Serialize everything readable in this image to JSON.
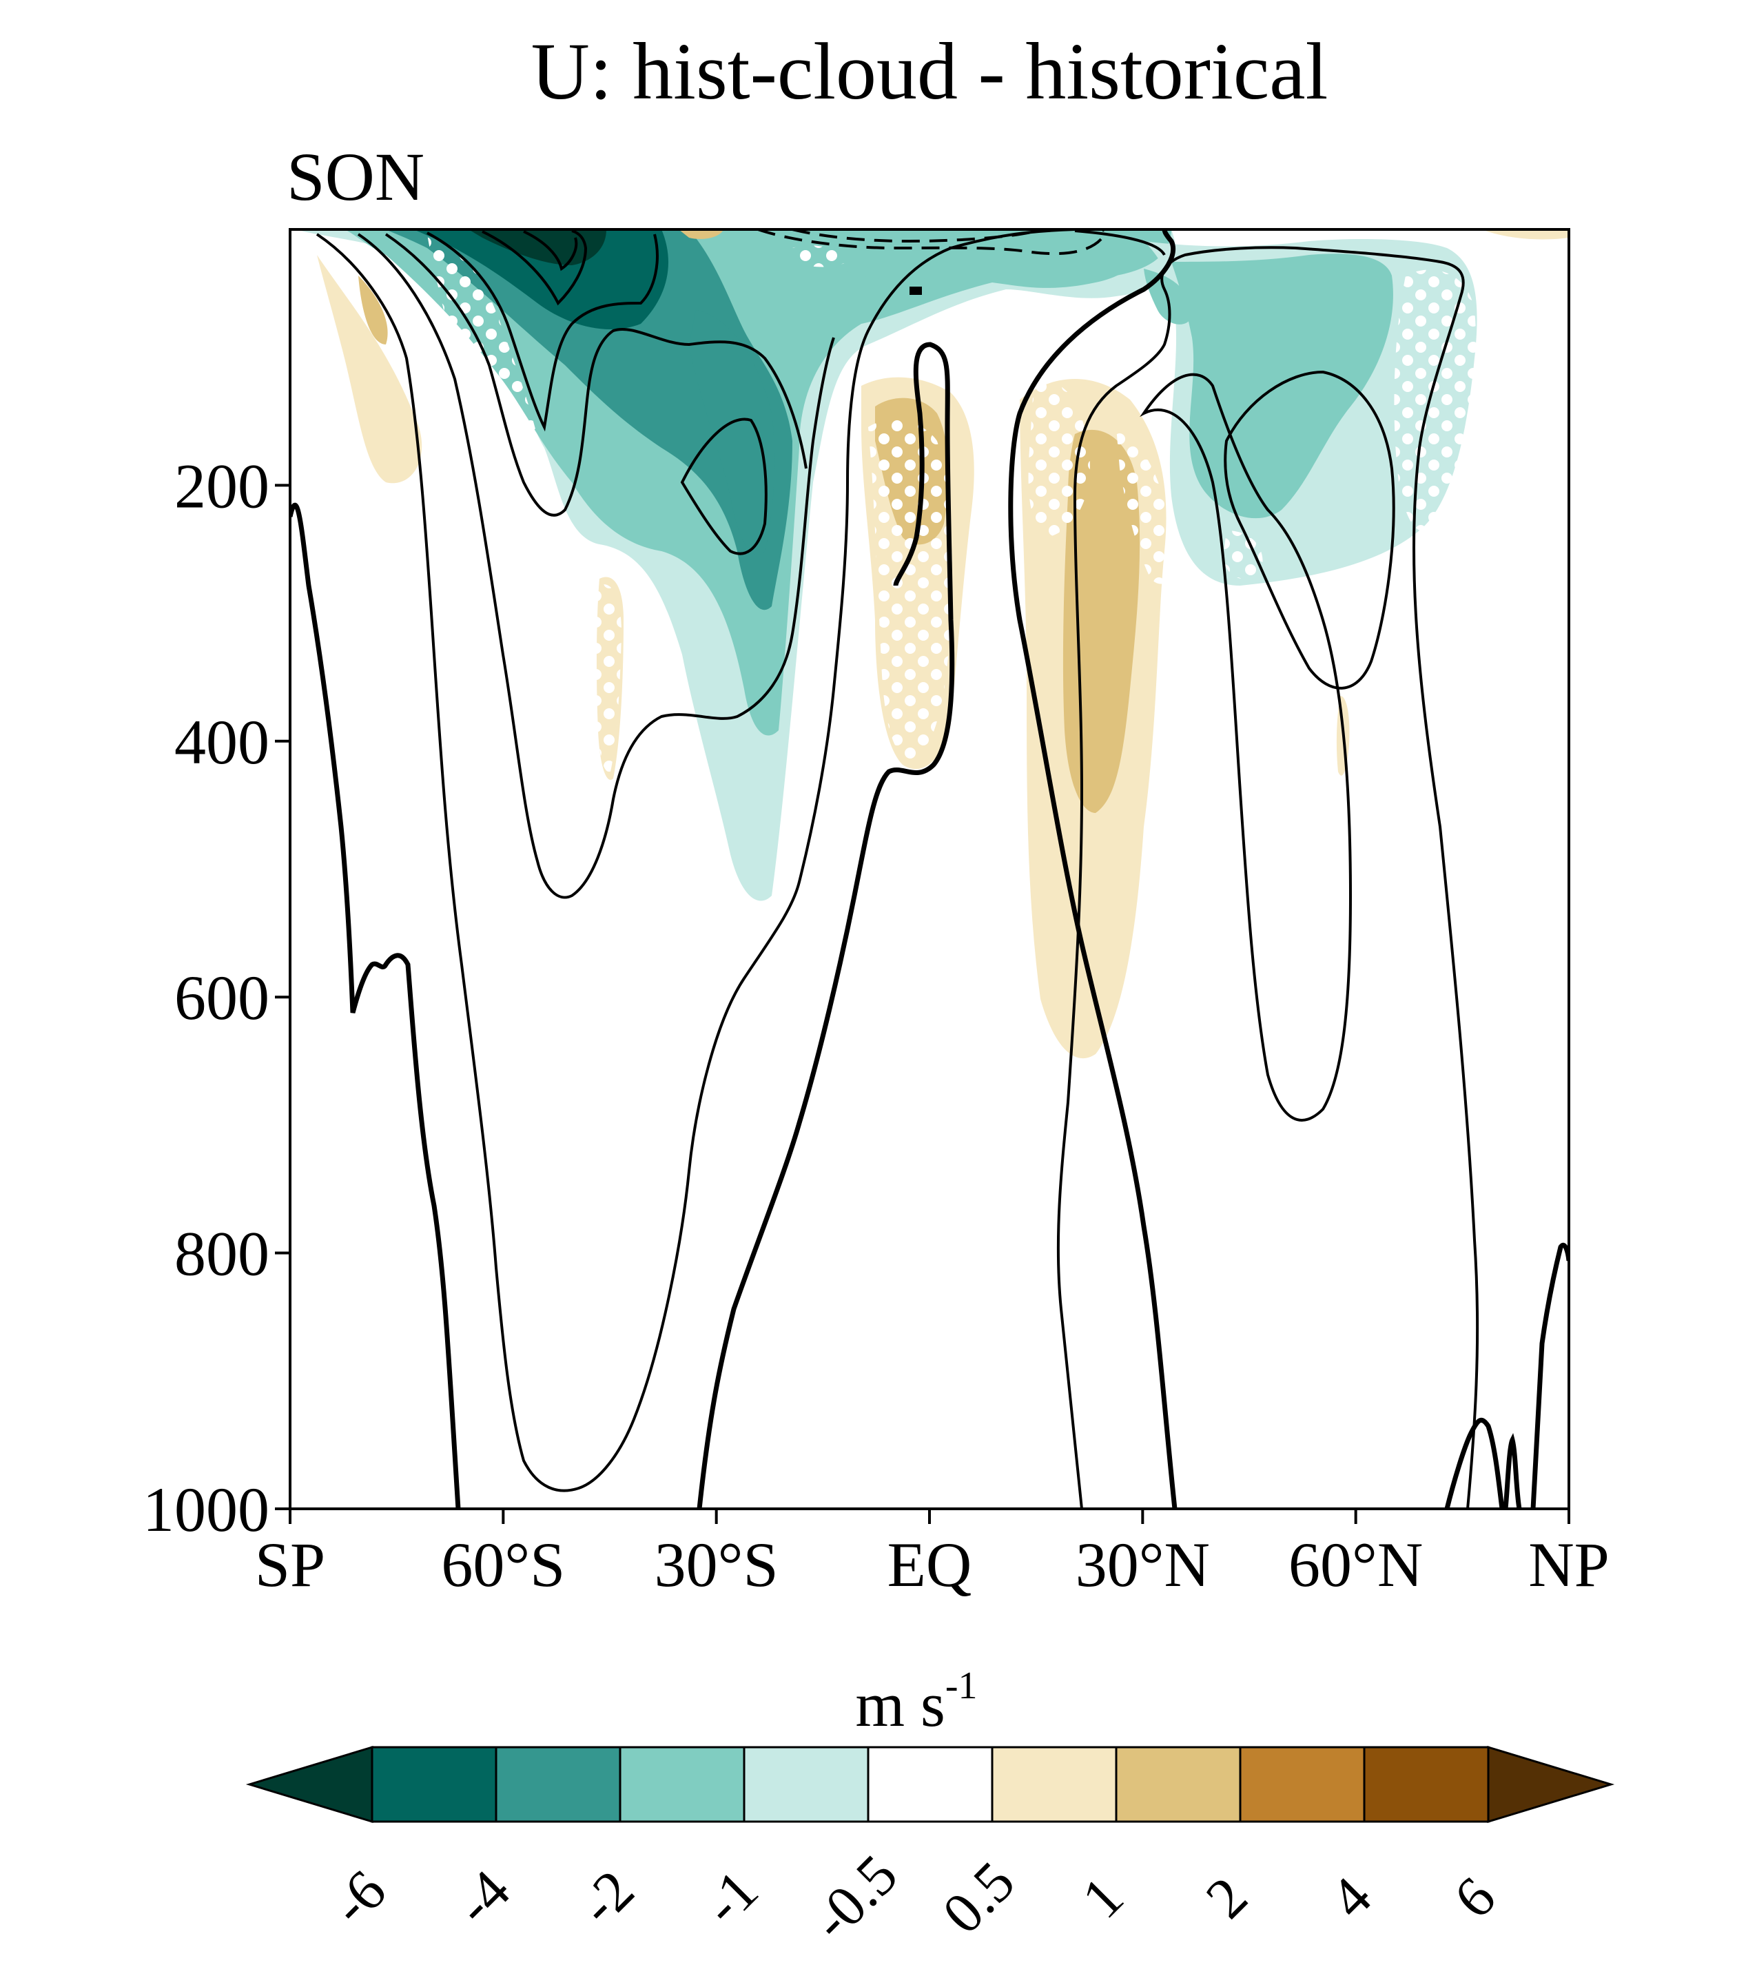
{
  "chart_data": {
    "type": "heatmap",
    "title": "U: hist-cloud - historical",
    "subtitle": "SON",
    "xlabel": "",
    "ylabel": "",
    "x_ticks": [
      "SP",
      "60°S",
      "30°S",
      "EQ",
      "30°N",
      "60°N",
      "NP"
    ],
    "x_tick_values": [
      -90,
      -60,
      -30,
      0,
      30,
      60,
      90
    ],
    "xlim": [
      -90,
      90
    ],
    "y_ticks": [
      "200",
      "400",
      "600",
      "800",
      "1000"
    ],
    "y_tick_values": [
      200,
      400,
      600,
      800,
      1000
    ],
    "ylim": [
      1000,
      0
    ],
    "colorbar": {
      "unit": "m s",
      "unit_exponent": "-1",
      "ticks": [
        "-6",
        "-4",
        "-2",
        "-1",
        "-0.5",
        "0.5",
        "1",
        "2",
        "4",
        "6"
      ],
      "colors": [
        "#003c30",
        "#01665e",
        "#35978f",
        "#80cdc1",
        "#c7eae5",
        "#ffffff",
        "#f6e8c3",
        "#dfc27d",
        "#bf812d",
        "#8c510a",
        "#543005"
      ]
    },
    "grid": false,
    "legend": "colorbar-bottom"
  }
}
